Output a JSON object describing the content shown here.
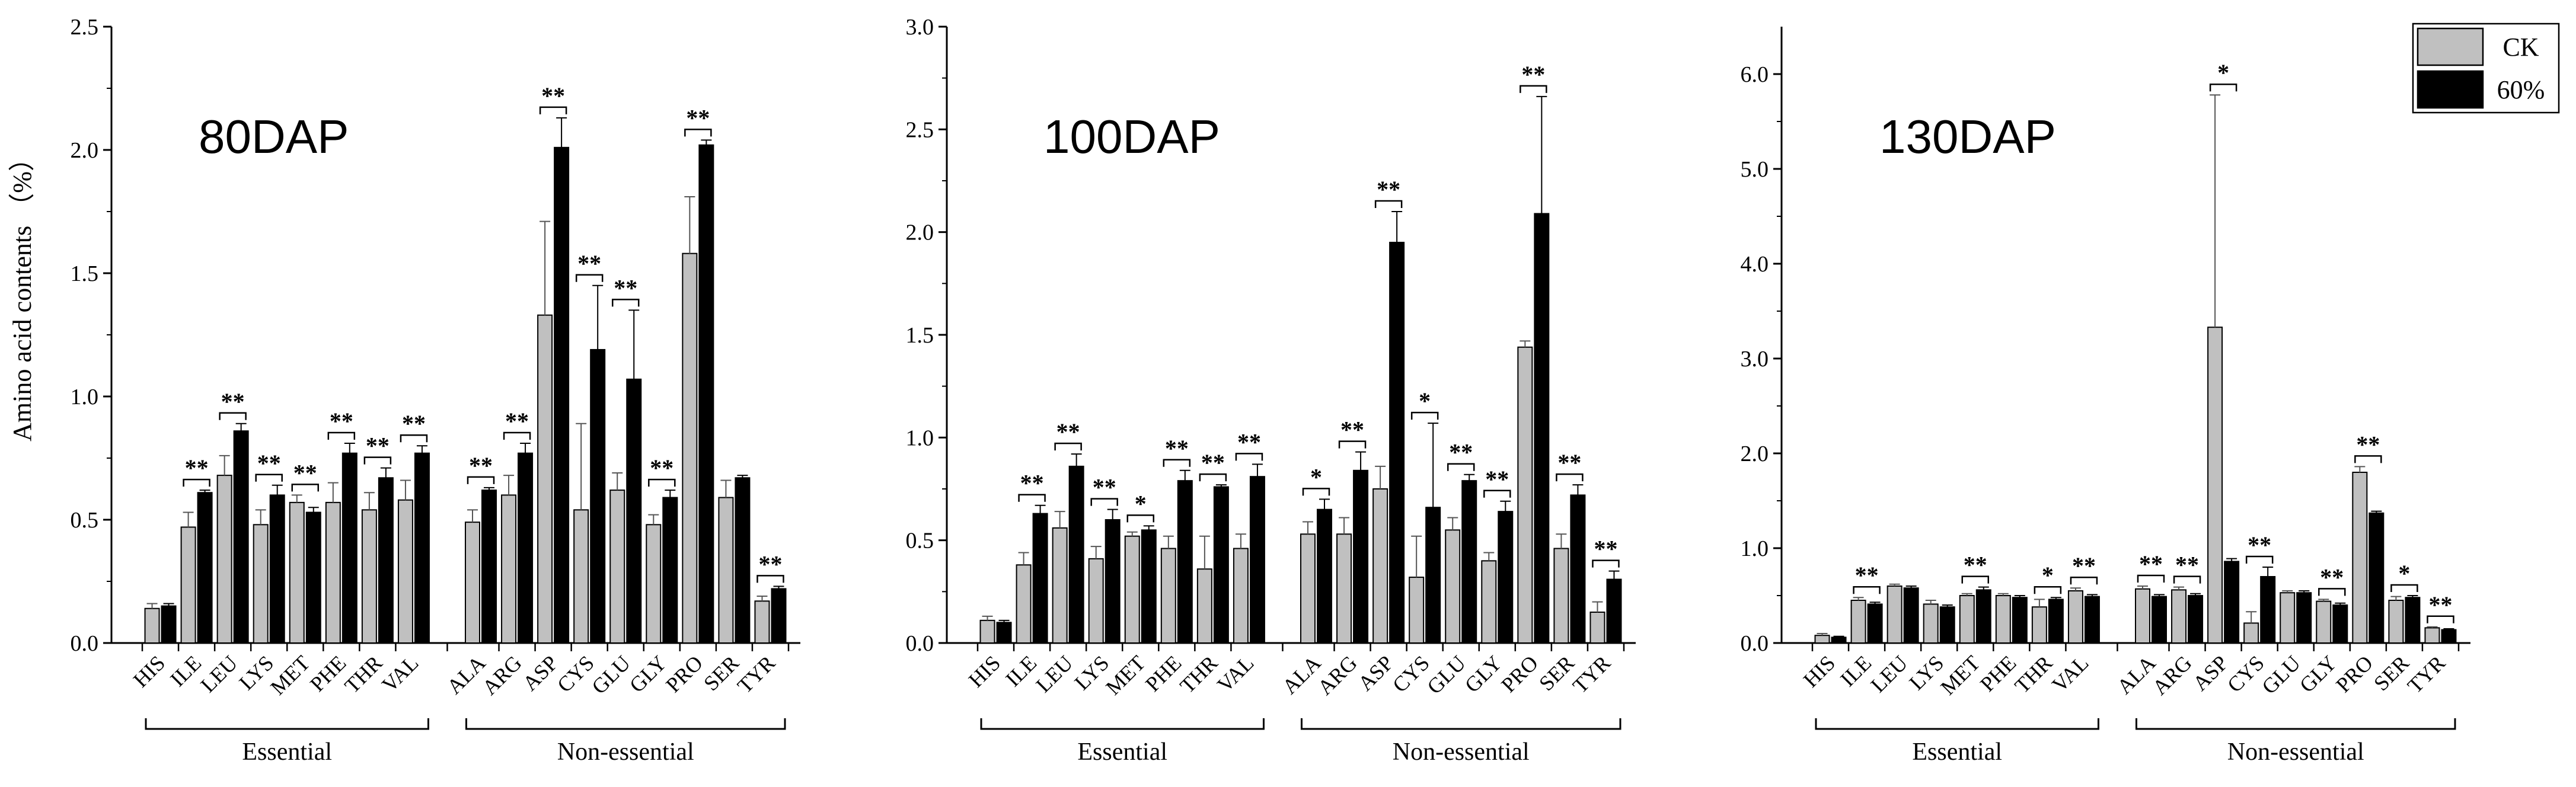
{
  "ylabel": "Amino acid contents （%）",
  "legend": [
    {
      "label": "CK",
      "color": "#c0c0c0"
    },
    {
      "label": "60%",
      "color": "#000000"
    }
  ],
  "group_labels": [
    "Essential",
    "Non-essential"
  ],
  "colors": {
    "ck": "#c0c0c0",
    "treatment": "#000000"
  },
  "chart_data": [
    {
      "type": "bar",
      "title": "80DAP",
      "ylim": [
        0,
        2.5
      ],
      "yticks": [
        "0.0",
        "0.5",
        "1.0",
        "1.5",
        "2.0",
        "2.5"
      ],
      "groups": [
        {
          "name": "Essential",
          "categories": [
            "HIS",
            "ILE",
            "LEU",
            "LYS",
            "MET",
            "PHE",
            "THR",
            "VAL"
          ]
        },
        {
          "name": "Non-essential",
          "categories": [
            "ALA",
            "ARG",
            "ASP",
            "CYS",
            "GLU",
            "GLY",
            "PRO",
            "SER",
            "TYR"
          ]
        }
      ],
      "categories": [
        "HIS",
        "ILE",
        "LEU",
        "LYS",
        "MET",
        "PHE",
        "THR",
        "VAL",
        "ALA",
        "ARG",
        "ASP",
        "CYS",
        "GLU",
        "GLY",
        "PRO",
        "SER",
        "TYR"
      ],
      "series": [
        {
          "name": "CK",
          "values": [
            0.14,
            0.47,
            0.68,
            0.48,
            0.57,
            0.57,
            0.54,
            0.58,
            0.49,
            0.6,
            1.33,
            0.54,
            0.62,
            0.48,
            1.58,
            0.59,
            0.17
          ],
          "errors": [
            0.02,
            0.06,
            0.08,
            0.06,
            0.03,
            0.08,
            0.07,
            0.08,
            0.05,
            0.08,
            0.38,
            0.35,
            0.07,
            0.04,
            0.23,
            0.07,
            0.02
          ]
        },
        {
          "name": "60%",
          "values": [
            0.15,
            0.61,
            0.86,
            0.6,
            0.53,
            0.77,
            0.67,
            0.77,
            0.62,
            0.77,
            2.01,
            1.19,
            1.07,
            0.59,
            2.02,
            0.67,
            0.22
          ],
          "errors": [
            0.01,
            0.01,
            0.03,
            0.04,
            0.02,
            0.04,
            0.04,
            0.03,
            0.01,
            0.04,
            0.12,
            0.26,
            0.28,
            0.03,
            0.02,
            0.01,
            0.01
          ]
        }
      ],
      "significance": [
        "",
        "**",
        "**",
        "**",
        "**",
        "**",
        "**",
        "**",
        "**",
        "**",
        "**",
        "**",
        "**",
        "**",
        "**",
        "",
        "**"
      ]
    },
    {
      "type": "bar",
      "title": "100DAP",
      "ylim": [
        0,
        3.0
      ],
      "yticks": [
        "0.0",
        "0.5",
        "1.0",
        "1.5",
        "2.0",
        "2.5",
        "3.0"
      ],
      "groups": [
        {
          "name": "Essential",
          "categories": [
            "HIS",
            "ILE",
            "LEU",
            "LYS",
            "MET",
            "PHE",
            "THR",
            "VAL"
          ]
        },
        {
          "name": "Non-essential",
          "categories": [
            "ALA",
            "ARG",
            "ASP",
            "CYS",
            "GLU",
            "GLY",
            "PRO",
            "SER",
            "TYR"
          ]
        }
      ],
      "categories": [
        "HIS",
        "ILE",
        "LEU",
        "LYS",
        "MET",
        "PHE",
        "THR",
        "VAL",
        "ALA",
        "ARG",
        "ASP",
        "CYS",
        "GLU",
        "GLY",
        "PRO",
        "SER",
        "TYR"
      ],
      "series": [
        {
          "name": "CK",
          "values": [
            0.11,
            0.38,
            0.56,
            0.41,
            0.52,
            0.46,
            0.36,
            0.46,
            0.53,
            0.53,
            0.75,
            0.32,
            0.55,
            0.4,
            1.44,
            0.46,
            0.15
          ],
          "errors": [
            0.02,
            0.06,
            0.08,
            0.06,
            0.02,
            0.06,
            0.16,
            0.07,
            0.06,
            0.08,
            0.11,
            0.2,
            0.06,
            0.04,
            0.03,
            0.07,
            0.05
          ]
        },
        {
          "name": "60%",
          "values": [
            0.1,
            0.63,
            0.86,
            0.6,
            0.55,
            0.79,
            0.76,
            0.81,
            0.65,
            0.84,
            1.95,
            0.66,
            0.79,
            0.64,
            2.09,
            0.72,
            0.31
          ],
          "errors": [
            0.01,
            0.04,
            0.06,
            0.05,
            0.02,
            0.05,
            0.01,
            0.06,
            0.05,
            0.09,
            0.15,
            0.41,
            0.03,
            0.05,
            0.57,
            0.05,
            0.04
          ]
        }
      ],
      "significance": [
        "",
        "**",
        "**",
        "**",
        "*",
        "**",
        "**",
        "**",
        "*",
        "**",
        "**",
        "*",
        "**",
        "**",
        "**",
        "**",
        "**"
      ]
    },
    {
      "type": "bar",
      "title": "130DAP",
      "ylim": [
        0,
        6.5
      ],
      "yticks": [
        "0.0",
        "1.0",
        "2.0",
        "3.0",
        "4.0",
        "5.0",
        "6.0"
      ],
      "groups": [
        {
          "name": "Essential",
          "categories": [
            "HIS",
            "ILE",
            "LEU",
            "LYS",
            "MET",
            "PHE",
            "THR",
            "VAL"
          ]
        },
        {
          "name": "Non-essential",
          "categories": [
            "ALA",
            "ARG",
            "ASP",
            "CYS",
            "GLU",
            "GLY",
            "PRO",
            "SER",
            "TYR"
          ]
        }
      ],
      "categories": [
        "HIS",
        "ILE",
        "LEU",
        "LYS",
        "MET",
        "PHE",
        "THR",
        "VAL",
        "ALA",
        "ARG",
        "ASP",
        "CYS",
        "GLU",
        "GLY",
        "PRO",
        "SER",
        "TYR"
      ],
      "series": [
        {
          "name": "CK",
          "values": [
            0.08,
            0.45,
            0.6,
            0.41,
            0.5,
            0.5,
            0.38,
            0.55,
            0.57,
            0.56,
            3.33,
            0.21,
            0.53,
            0.44,
            1.8,
            0.45,
            0.16
          ],
          "errors": [
            0.02,
            0.03,
            0.02,
            0.04,
            0.02,
            0.02,
            0.08,
            0.03,
            0.03,
            0.03,
            2.45,
            0.12,
            0.02,
            0.02,
            0.06,
            0.04,
            0.01
          ]
        },
        {
          "name": "60%",
          "values": [
            0.06,
            0.41,
            0.58,
            0.38,
            0.56,
            0.48,
            0.46,
            0.49,
            0.49,
            0.5,
            0.86,
            0.7,
            0.53,
            0.4,
            1.37,
            0.48,
            0.14
          ],
          "errors": [
            0.01,
            0.02,
            0.02,
            0.02,
            0.03,
            0.02,
            0.02,
            0.02,
            0.02,
            0.02,
            0.03,
            0.1,
            0.02,
            0.02,
            0.02,
            0.02,
            0.01
          ]
        }
      ],
      "significance": [
        "",
        "**",
        "",
        "",
        "**",
        "",
        "*",
        "**",
        "**",
        "**",
        "*",
        "**",
        "",
        "**",
        "**",
        "*",
        "**"
      ]
    }
  ]
}
